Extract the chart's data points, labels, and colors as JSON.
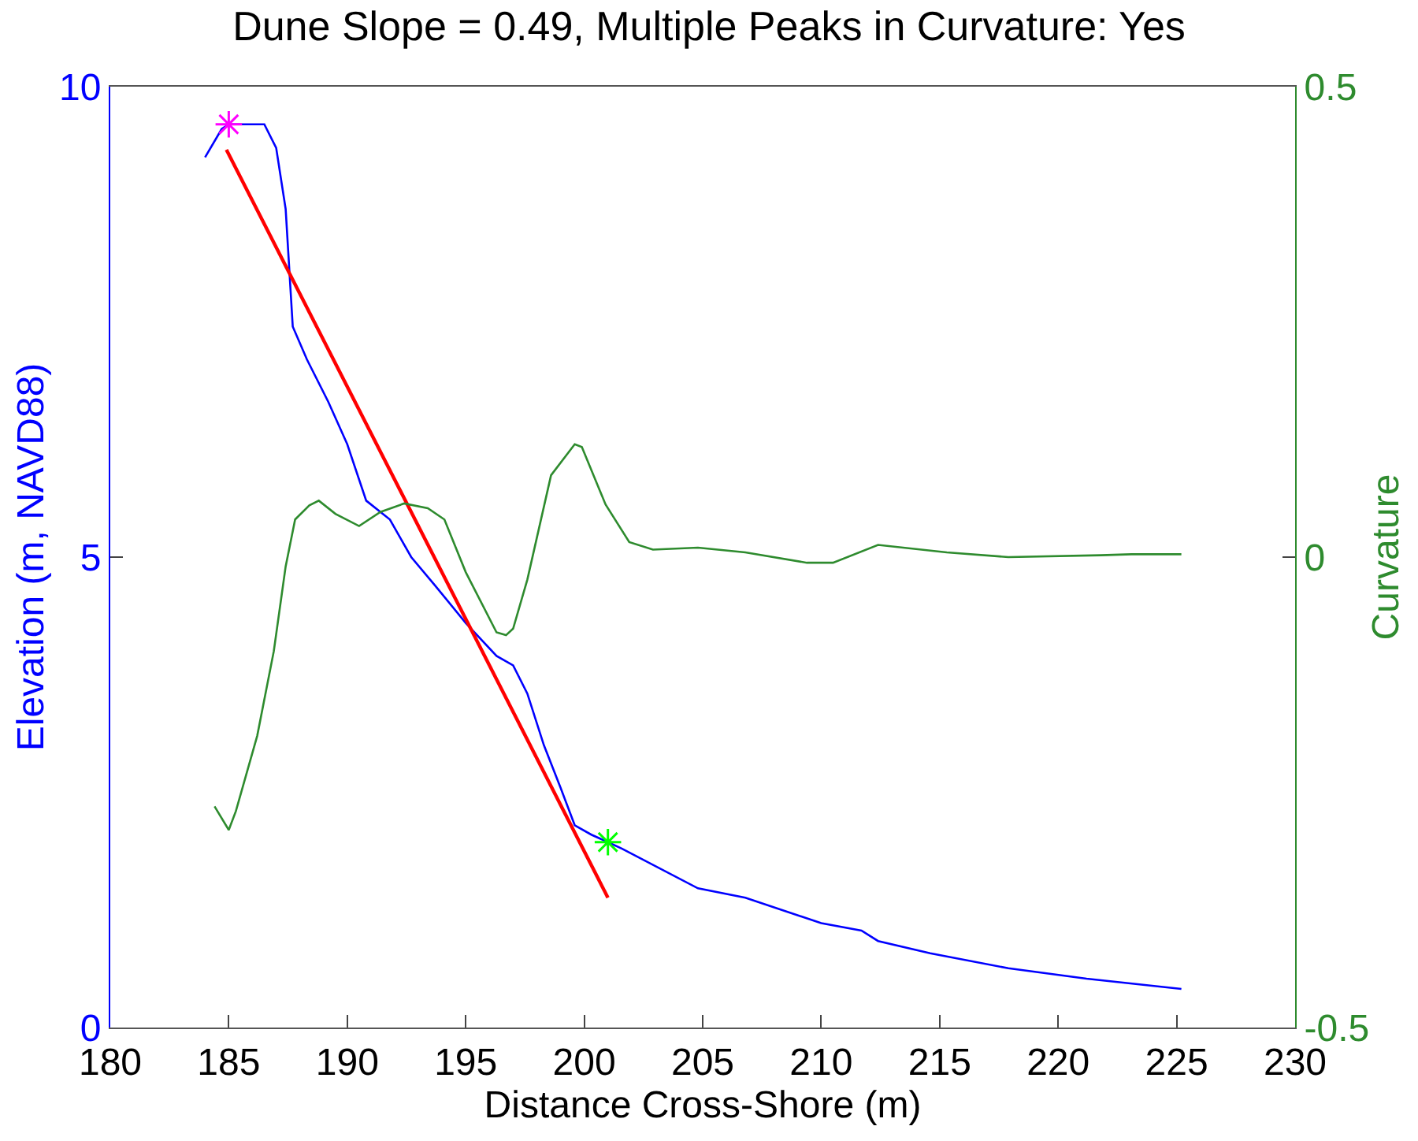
{
  "chart_data": {
    "type": "line",
    "title": "Dune Slope = 0.49, Multiple Peaks in Curvature: Yes",
    "xlabel": "Distance Cross-Shore (m)",
    "ylabel": "Elevation (m, NAVD88)",
    "y2label": "Curvature",
    "xlim": [
      180,
      230
    ],
    "xticks": [
      180,
      185,
      190,
      195,
      200,
      205,
      210,
      215,
      220,
      225,
      230
    ],
    "ylim": [
      0,
      10
    ],
    "yticks": [
      0,
      5,
      10
    ],
    "y2lim": [
      -0.5,
      0.5
    ],
    "y2ticks": [
      -0.5,
      0,
      0.5
    ],
    "series": [
      {
        "color": "#0000ff",
        "marker": "none",
        "x": [
          184,
          184.7,
          185,
          186.5,
          187,
          187.4,
          187.7,
          188.3,
          189.2,
          190,
          190.8,
          191.8,
          192.7,
          193.7,
          195,
          196.3,
          197,
          197.6,
          198.3,
          199,
          199.6,
          200.3,
          201,
          201.6,
          204.8,
          206.8,
          210,
          211.7,
          212.4,
          214.6,
          217.9,
          221.2,
          225.2
        ],
        "values": [
          9.25,
          9.55,
          9.6,
          9.6,
          9.35,
          8.7,
          7.45,
          7.1,
          6.65,
          6.2,
          5.6,
          5.4,
          5.0,
          4.7,
          4.3,
          3.95,
          3.85,
          3.55,
          3.0,
          2.55,
          2.15,
          2.05,
          1.97,
          1.9,
          1.48,
          1.38,
          1.11,
          1.03,
          0.92,
          0.79,
          0.63,
          0.52,
          0.41
        ]
      },
      {
        "axis": "y2",
        "color": "#2e8b2e",
        "marker": "none",
        "x": [
          184.4,
          185,
          185.3,
          186.2,
          186.9,
          187.4,
          187.8,
          188.4,
          188.8,
          189.5,
          190.5,
          191.4,
          192.4,
          193.4,
          194.1,
          195,
          196.3,
          196.7,
          197,
          197.6,
          198.6,
          199.6,
          199.9,
          200.9,
          201.9,
          202.9,
          204.8,
          206.8,
          209.4,
          210.5,
          212.4,
          215.3,
          217.9,
          221.8,
          223.1,
          225.2
        ],
        "values": [
          -0.265,
          -0.29,
          -0.27,
          -0.19,
          -0.1,
          -0.01,
          0.04,
          0.055,
          0.06,
          0.046,
          0.033,
          0.048,
          0.057,
          0.052,
          0.04,
          -0.016,
          -0.08,
          -0.083,
          -0.076,
          -0.024,
          0.087,
          0.12,
          0.117,
          0.056,
          0.016,
          0.008,
          0.01,
          0.005,
          -0.006,
          -0.006,
          0.013,
          0.005,
          0.0,
          0.002,
          0.003,
          0.003
        ]
      },
      {
        "color": "#ff0000",
        "marker": "none",
        "x": [
          184.9,
          201.0
        ],
        "values": [
          9.33,
          1.38
        ]
      },
      {
        "type": "scatter",
        "color": "#ff00ff",
        "marker": "cross",
        "x": [
          185
        ],
        "values": [
          9.6
        ]
      },
      {
        "type": "scatter",
        "color": "#00ff00",
        "marker": "cross",
        "x": [
          201
        ],
        "values": [
          1.97
        ]
      }
    ]
  }
}
